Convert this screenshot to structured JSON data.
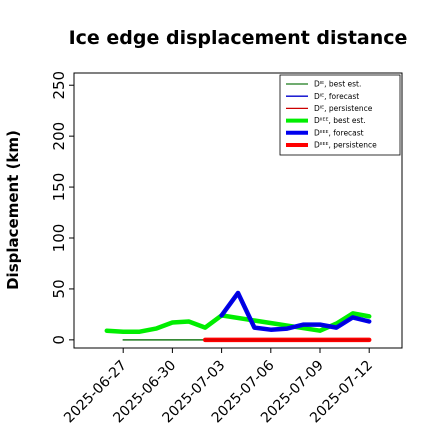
{
  "chart_data": {
    "type": "line",
    "title": "Ice edge displacement distance",
    "xlabel": "",
    "ylabel": "Displacement (km)",
    "ylim": [
      -8,
      262
    ],
    "xlim": [
      "2025-06-24",
      "2025-07-14"
    ],
    "y_ticks": [
      0,
      50,
      100,
      150,
      200,
      250
    ],
    "x_ticks": [
      {
        "label": "2025-06-27",
        "date": "2025-06-27",
        "color": "#000000"
      },
      {
        "label": "2025-06-30",
        "date": "2025-06-30",
        "color": "#000000"
      },
      {
        "label": "2025-07-03",
        "date": "2025-07-03",
        "color": "#228B22"
      },
      {
        "label": "2025-07-06",
        "date": "2025-07-06",
        "color": "#000000"
      },
      {
        "label": "2025-07-09",
        "date": "2025-07-09",
        "color": "#000000"
      },
      {
        "label": "2025-07-12",
        "date": "2025-07-12",
        "color": "#000000"
      }
    ],
    "grid": false,
    "legend_position": "top-right",
    "legend": [
      {
        "label": "Dᴵᴱ, best est.",
        "color": "#1a7a1a",
        "style": "thin"
      },
      {
        "label": "Dᴵᴱ, forecast",
        "color": "#0000cc",
        "style": "thin"
      },
      {
        "label": "Dᴵᴱ, persistence",
        "color": "#cc0000",
        "style": "thin"
      },
      {
        "label": "Dᴵᴵᴱᴱ, best est.",
        "color": "#00ee00",
        "style": "thick"
      },
      {
        "label": "Dᴵᴵᴱᴱ, forecast",
        "color": "#0000ee",
        "style": "thick"
      },
      {
        "label": "Dᴵᴵᴱᴱ, persistence",
        "color": "#ff0000",
        "style": "thick"
      }
    ],
    "series": [
      {
        "name": "Dᴵᴱ, best est.",
        "color": "#1a7a1a",
        "width": 1.5,
        "points": [
          [
            "2025-06-27",
            0
          ],
          [
            "2025-06-28",
            0
          ],
          [
            "2025-06-29",
            0
          ],
          [
            "2025-06-30",
            0
          ],
          [
            "2025-07-01",
            0
          ],
          [
            "2025-07-02",
            0
          ]
        ]
      },
      {
        "name": "Dᴵᴵᴱᴱ, persistence",
        "color": "#ff0000",
        "width": 4.5,
        "points": [
          [
            "2025-07-02",
            0
          ],
          [
            "2025-07-04",
            0
          ],
          [
            "2025-07-06",
            0
          ],
          [
            "2025-07-08",
            0
          ],
          [
            "2025-07-10",
            0
          ],
          [
            "2025-07-12",
            0
          ]
        ]
      },
      {
        "name": "Dᴵᴱ, persistence",
        "color": "#cc0000",
        "width": 1.2,
        "points": [
          [
            "2025-07-02",
            0
          ],
          [
            "2025-07-12",
            0
          ]
        ]
      },
      {
        "name": "Dᴵᴵᴱᴱ, best est.",
        "color": "#00ee00",
        "width": 4.5,
        "points": [
          [
            "2025-06-26",
            9
          ],
          [
            "2025-06-27",
            8
          ],
          [
            "2025-06-28",
            8
          ],
          [
            "2025-06-29",
            11
          ],
          [
            "2025-06-30",
            17
          ],
          [
            "2025-07-01",
            18
          ],
          [
            "2025-07-02",
            12
          ],
          [
            "2025-07-03",
            24
          ],
          [
            "2025-07-09",
            9
          ],
          [
            "2025-07-10",
            16
          ],
          [
            "2025-07-11",
            26
          ],
          [
            "2025-07-12",
            23
          ]
        ]
      },
      {
        "name": "Dᴵᴵᴱᴱ, forecast",
        "color": "#0000ee",
        "width": 4.5,
        "points": [
          [
            "2025-07-03",
            24
          ],
          [
            "2025-07-04",
            46
          ],
          [
            "2025-07-05",
            12
          ],
          [
            "2025-07-06",
            10
          ],
          [
            "2025-07-07",
            11
          ],
          [
            "2025-07-08",
            15
          ],
          [
            "2025-07-09",
            15
          ],
          [
            "2025-07-10",
            12
          ],
          [
            "2025-07-11",
            22
          ],
          [
            "2025-07-12",
            18
          ]
        ]
      },
      {
        "name": "Dᴵᴱ, forecast",
        "color": "#0000cc",
        "width": 1.2,
        "points": [
          [
            "2025-07-03",
            24
          ],
          [
            "2025-07-04",
            46
          ],
          [
            "2025-07-05",
            12
          ],
          [
            "2025-07-06",
            10
          ],
          [
            "2025-07-07",
            11
          ],
          [
            "2025-07-08",
            15
          ],
          [
            "2025-07-09",
            15
          ],
          [
            "2025-07-10",
            12
          ],
          [
            "2025-07-11",
            22
          ],
          [
            "2025-07-12",
            18
          ]
        ]
      }
    ]
  }
}
